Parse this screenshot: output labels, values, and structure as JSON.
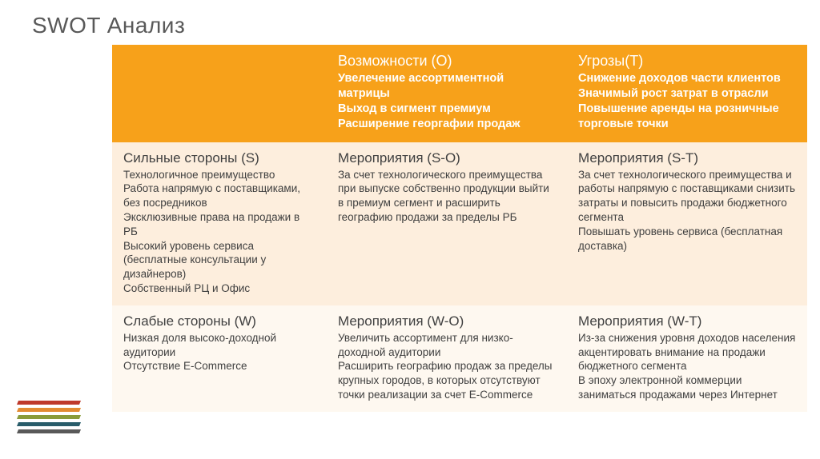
{
  "title": "SWOT Анализ",
  "colors": {
    "header_bg": "#f7a11a",
    "row1_bg": "#fdeedd",
    "row2_bg": "#fef8f0",
    "title_color": "#595959",
    "text_color": "#404040",
    "deco": [
      "#bf392b",
      "#e38b32",
      "#8a9b3a",
      "#285c6a",
      "#595959"
    ]
  },
  "table": {
    "col_headers": [
      {
        "title": "Возможности (O)",
        "body": "Увелечение ассортиментной матрицы\nВыход в сигмент премиум\nРасширение георгафии продаж"
      },
      {
        "title": "Угрозы(T)",
        "body": "Снижение доходов части клиентов\nЗначимый рост затрат в отрасли\nПовышение аренды на розничные торговые точки"
      }
    ],
    "rows": [
      {
        "row_header": {
          "title": "Сильные стороны (S)",
          "body": "Технологичное преимущество\nРабота напрямую с поставщиками, без посредников\nЭксклюзивные права на продажи в РБ\nВысокий уровень сервиса (бесплатные консультации у дизайнеров)\nСобственный РЦ и Офис"
        },
        "cells": [
          {
            "title": "Мероприятия (S-O)",
            "body": "За счет технологического преимущества при выпуске собственно продукции выйти в премиум сегмент и расширить географию продажи за пределы РБ"
          },
          {
            "title": "Мероприятия (S-T)",
            "body": "За счет технологического преимущества и работы напрямую с поставщиками снизить затраты и повысить продажи бюджетного сегмента\nПовышать уровень сервиса (бесплатная доставка)"
          }
        ]
      },
      {
        "row_header": {
          "title": "Слабые стороны (W)",
          "body": "Низкая доля высоко-доходной аудитории\n Отсутствие E-Commerce"
        },
        "cells": [
          {
            "title": "Мероприятия (W-O)",
            "body": "Увеличить ассортимент для низко-доходной аудитории\nРасширить географию продаж за пределы крупных городов, в которых отсутствуют точки реализации за счет E-Commerce"
          },
          {
            "title": "Мероприятия (W-T)",
            "body": "Из-за снижения уровня доходов населения акцентировать внимание на продажи бюджетного сегмента\nВ эпоху электронной коммерции заниматься продажами через Интернет"
          }
        ]
      }
    ]
  }
}
